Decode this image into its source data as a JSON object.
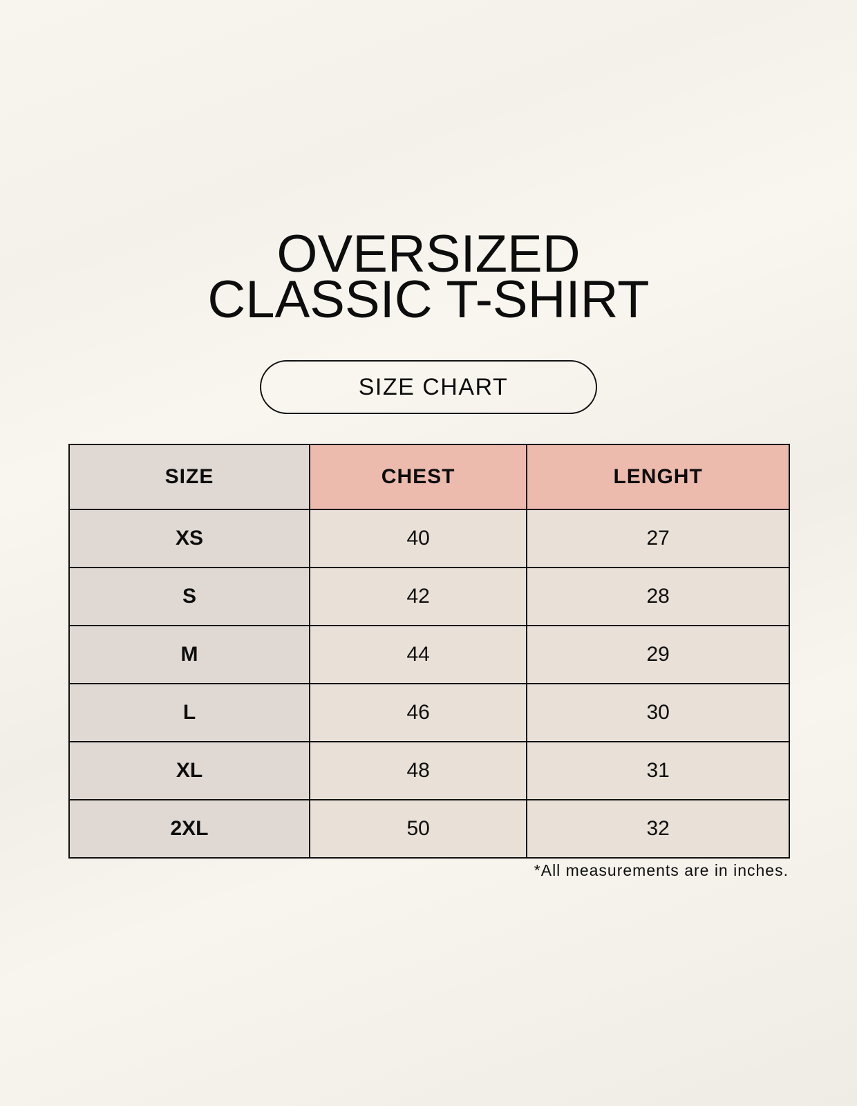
{
  "title": {
    "line1": "OVERSIZED",
    "line2": "CLASSIC T-SHIRT"
  },
  "subtitle": "SIZE CHART",
  "table": {
    "headers": [
      "SIZE",
      "CHEST",
      "LENGHT"
    ],
    "rows": [
      [
        "XS",
        "40",
        "27"
      ],
      [
        "S",
        "42",
        "28"
      ],
      [
        "M",
        "44",
        "29"
      ],
      [
        "L",
        "46",
        "30"
      ],
      [
        "XL",
        "48",
        "31"
      ],
      [
        "2XL",
        "50",
        "32"
      ]
    ]
  },
  "note": "*All measurements are in inches.",
  "colors": {
    "size_column": "#e0d9d3",
    "header_accent": "#edbbae",
    "value_cells": "#e9e1d7"
  }
}
